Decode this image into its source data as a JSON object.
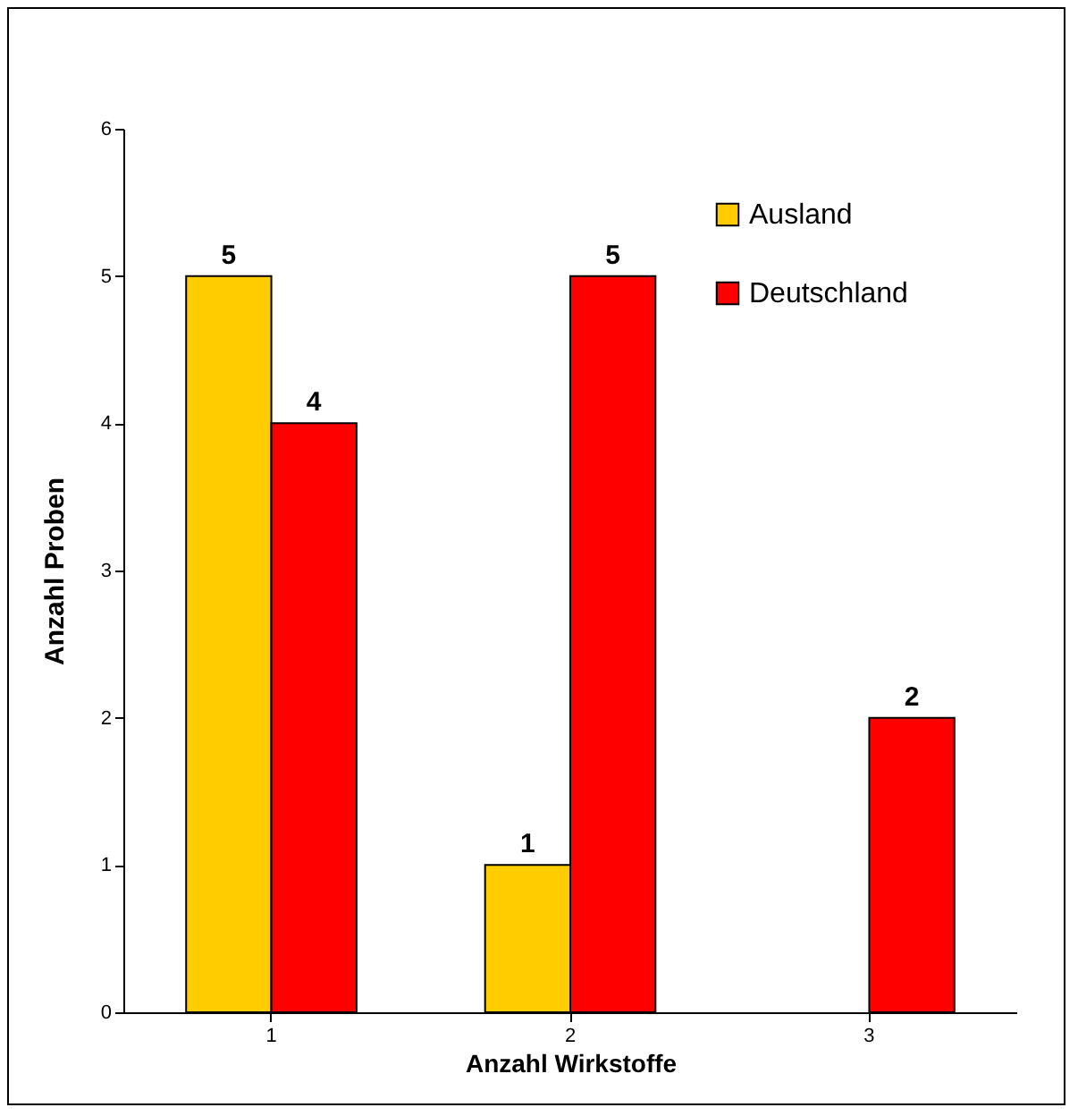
{
  "chart_data": {
    "type": "bar",
    "xlabel": "Anzahl Wirkstoffe",
    "ylabel": "Anzahl Proben",
    "categories": [
      "1",
      "2",
      "3"
    ],
    "series": [
      {
        "name": "Ausland",
        "color": "#ffcc00",
        "values": [
          5,
          1,
          null
        ]
      },
      {
        "name": "Deutschland",
        "color": "#ff0000",
        "values": [
          4,
          5,
          2
        ]
      }
    ],
    "ylim": [
      0,
      6
    ],
    "yticks": [
      0,
      1,
      2,
      3,
      4,
      5,
      6
    ],
    "grid": false,
    "legend": "top right",
    "data_labels": true
  }
}
